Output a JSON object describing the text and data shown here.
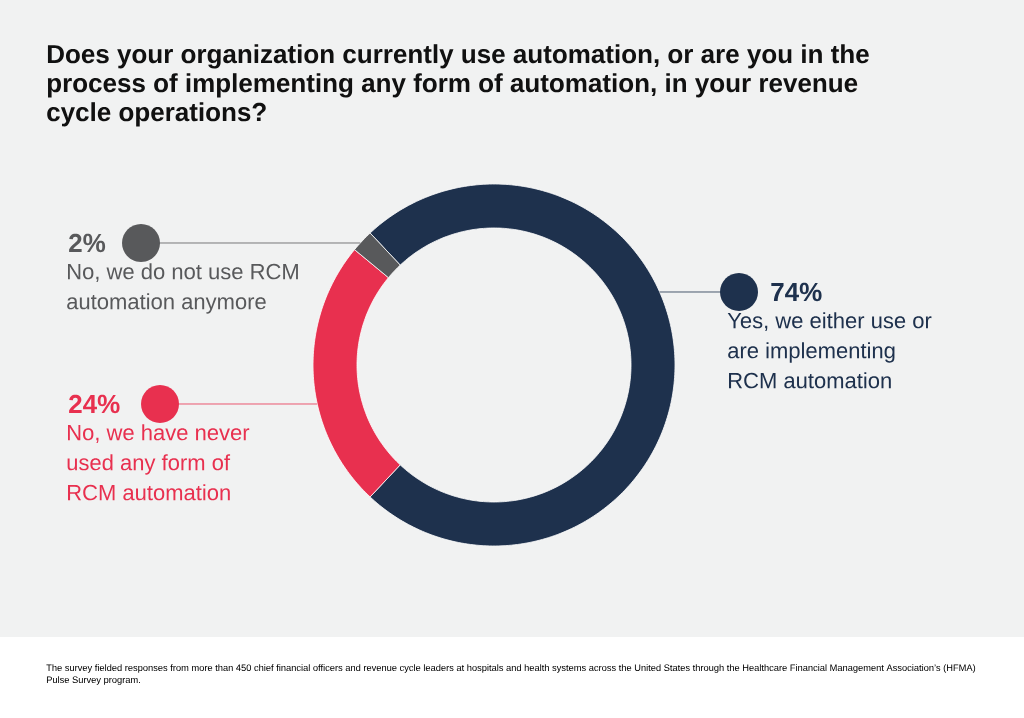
{
  "chart_data": {
    "type": "donut",
    "title": "Does your organization currently use automation, or are you in the process of implementing any form of automation, in your revenue cycle operations?",
    "categories": [
      "Yes, we either use or are implementing RCM automation",
      "No, we have never used any form of RCM automation",
      "No, we do not use RCM automation anymore"
    ],
    "values": [
      74,
      24,
      2
    ],
    "colors": [
      "#1e314d",
      "#e8304f",
      "#58595b"
    ],
    "value_labels": [
      "74%",
      "24%",
      "2%"
    ],
    "legend": "left",
    "annotations": [
      "The survey fielded responses from more than 450 chief financial officers and revenue cycle leaders at hospitals and health systems across the United States through the Healthcare Financial Management Association’s (HFMA) Pulse Survey program."
    ]
  }
}
